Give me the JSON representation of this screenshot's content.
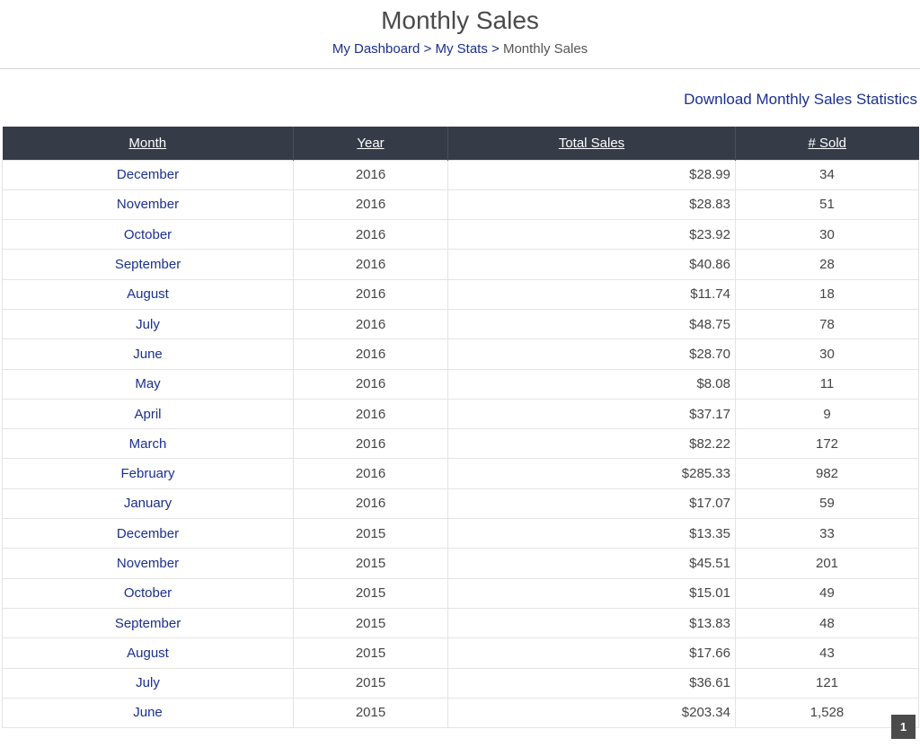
{
  "page": {
    "title": "Monthly Sales"
  },
  "breadcrumb": {
    "items": [
      "My Dashboard",
      "My Stats"
    ],
    "separator": ">",
    "current": "Monthly Sales"
  },
  "download_label": "Download Monthly Sales Statistics",
  "table": {
    "headers": [
      "Month",
      "Year",
      "Total Sales",
      "# Sold"
    ],
    "rows": [
      [
        "December",
        "2016",
        "$28.99",
        "34"
      ],
      [
        "November",
        "2016",
        "$28.83",
        "51"
      ],
      [
        "October",
        "2016",
        "$23.92",
        "30"
      ],
      [
        "September",
        "2016",
        "$40.86",
        "28"
      ],
      [
        "August",
        "2016",
        "$11.74",
        "18"
      ],
      [
        "July",
        "2016",
        "$48.75",
        "78"
      ],
      [
        "June",
        "2016",
        "$28.70",
        "30"
      ],
      [
        "May",
        "2016",
        "$8.08",
        "11"
      ],
      [
        "April",
        "2016",
        "$37.17",
        "9"
      ],
      [
        "March",
        "2016",
        "$82.22",
        "172"
      ],
      [
        "February",
        "2016",
        "$285.33",
        "982"
      ],
      [
        "January",
        "2016",
        "$17.07",
        "59"
      ],
      [
        "December",
        "2015",
        "$13.35",
        "33"
      ],
      [
        "November",
        "2015",
        "$45.51",
        "201"
      ],
      [
        "October",
        "2015",
        "$15.01",
        "49"
      ],
      [
        "September",
        "2015",
        "$13.83",
        "48"
      ],
      [
        "August",
        "2015",
        "$17.66",
        "43"
      ],
      [
        "July",
        "2015",
        "$36.61",
        "121"
      ],
      [
        "June",
        "2015",
        "$203.34",
        "1,528"
      ]
    ]
  },
  "pagination": {
    "current_page": "1"
  },
  "colors": {
    "header_bg": "#353c48",
    "link": "#1a2f8f",
    "pager_bg": "#4b4b4b"
  }
}
